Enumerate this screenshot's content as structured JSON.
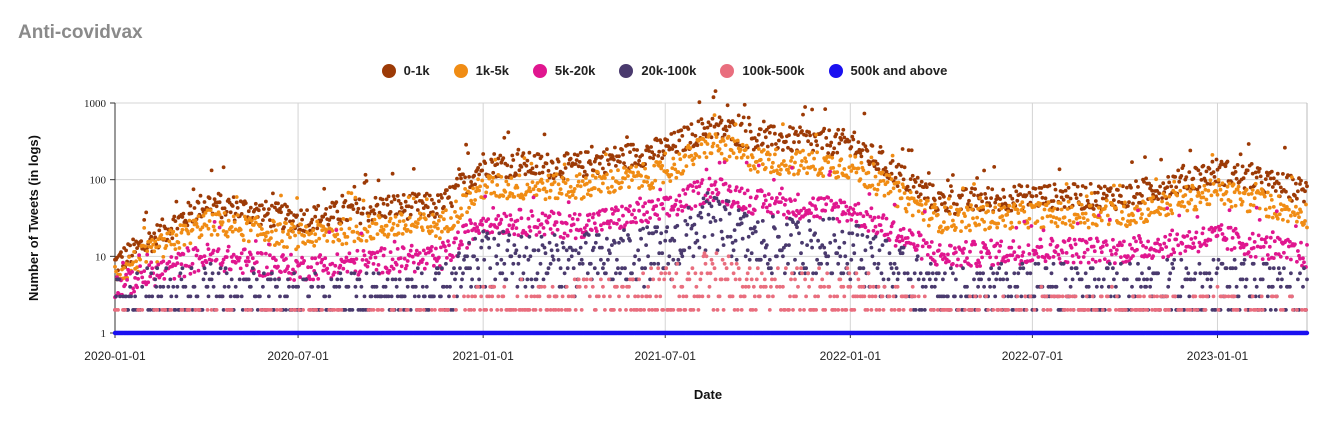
{
  "chart_data": {
    "type": "scatter",
    "title": "Anti-covidvax",
    "xlabel": "Date",
    "ylabel": "Number of Tweets (in logs)",
    "yscale": "log",
    "ylim": [
      1,
      1000
    ],
    "yticks": [
      1,
      10,
      100,
      1000
    ],
    "ytick_labels": [
      "1",
      "10",
      "100",
      "1000"
    ],
    "xlim": [
      "2020-01-01",
      "2023-03-31"
    ],
    "xticks": [
      "2020-01-01",
      "2020-07-01",
      "2021-01-01",
      "2021-07-01",
      "2022-01-01",
      "2022-07-01",
      "2023-01-01"
    ],
    "legend_position": "top-center",
    "grid": true,
    "x": [
      "2020-01-01",
      "2020-04-01",
      "2020-07-01",
      "2020-10-01",
      "2020-11-20",
      "2021-01-01",
      "2021-04-01",
      "2021-07-01",
      "2021-08-15",
      "2021-10-01",
      "2022-01-01",
      "2022-04-01",
      "2022-07-01",
      "2022-10-01",
      "2023-01-01",
      "2023-03-31"
    ],
    "series": [
      {
        "name": "0-1k",
        "color": "#9c3a06",
        "values": [
          8,
          50,
          30,
          45,
          45,
          160,
          150,
          250,
          500,
          350,
          300,
          50,
          60,
          60,
          130,
          70
        ]
      },
      {
        "name": "1k-5k",
        "color": "#f08c14",
        "values": [
          6,
          28,
          18,
          25,
          25,
          80,
          80,
          120,
          300,
          180,
          150,
          30,
          35,
          35,
          70,
          35
        ]
      },
      {
        "name": "5k-20k",
        "color": "#e0168f",
        "values": [
          4,
          10,
          7,
          9,
          9,
          30,
          25,
          40,
          80,
          50,
          40,
          10,
          12,
          12,
          18,
          10
        ]
      },
      {
        "name": "20k-100k",
        "color": "#4a3a6e",
        "values": [
          2.5,
          3.5,
          2.5,
          3,
          3,
          9,
          8,
          11,
          30,
          14,
          13,
          3,
          3.5,
          3.5,
          4,
          3
        ]
      },
      {
        "name": "100k-500k",
        "color": "#e96e7e",
        "values": [
          1,
          1,
          1,
          1,
          1,
          2,
          2,
          3,
          5,
          3,
          3,
          1.2,
          1.5,
          1.5,
          1.5,
          1.2
        ]
      },
      {
        "name": "500k and above",
        "color": "#1a10f0",
        "values": [
          1,
          1,
          1,
          1,
          1,
          1,
          1,
          1,
          1,
          1,
          1,
          1,
          1,
          1,
          1,
          1
        ]
      }
    ]
  }
}
